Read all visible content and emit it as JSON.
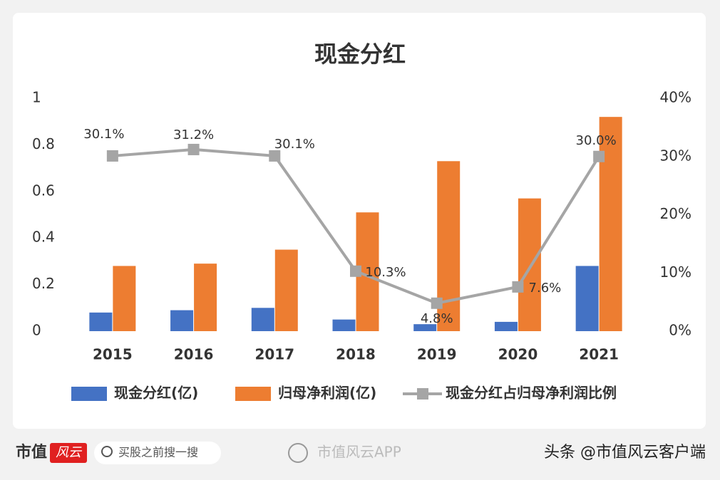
{
  "chart_data": {
    "type": "bar",
    "title": "现金分红",
    "categories": [
      "2015",
      "2016",
      "2017",
      "2018",
      "2019",
      "2020",
      "2021"
    ],
    "series": [
      {
        "name": "现金分红(亿)",
        "color": "#4472c4",
        "values": [
          0.08,
          0.09,
          0.1,
          0.05,
          0.03,
          0.04,
          0.28
        ]
      },
      {
        "name": "归母净利润(亿)",
        "color": "#ed7d31",
        "values": [
          0.28,
          0.29,
          0.35,
          0.51,
          0.73,
          0.57,
          0.92
        ]
      },
      {
        "name": "现金分红占归母净利润比例",
        "type": "line",
        "axis": "y2",
        "color": "#a5a5a5",
        "values": [
          30.1,
          31.2,
          30.1,
          10.3,
          4.8,
          7.6,
          30.0
        ],
        "value_labels": [
          "30.1%",
          "31.2%",
          "30.1%",
          "10.3%",
          "4.8%",
          "7.6%",
          "30.0%"
        ]
      }
    ],
    "ylim": [
      0,
      1
    ],
    "yticks": [
      0,
      0.2,
      0.4,
      0.6,
      0.8,
      1
    ],
    "y2lim": [
      0,
      40
    ],
    "y2ticks": [
      {
        "value": 0,
        "label": "0%"
      },
      {
        "value": 10,
        "label": "10%"
      },
      {
        "value": 20,
        "label": "20%"
      },
      {
        "value": 30,
        "label": "30%"
      },
      {
        "value": 40,
        "label": "40%"
      }
    ],
    "grid": false,
    "legend": "bottom"
  },
  "footer": {
    "logo": "市值",
    "logo_tag": "风云",
    "search": "买股之前搜一搜",
    "app": "市值风云APP",
    "source": "头条 @市值风云客户端"
  }
}
